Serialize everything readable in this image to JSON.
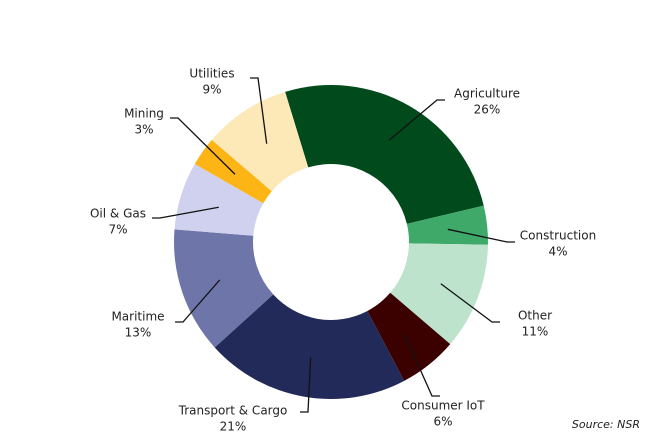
{
  "chart_data": {
    "type": "donut",
    "categories": [
      "Agriculture",
      "Construction",
      "Other",
      "Consumer IoT",
      "Transport & Cargo",
      "Maritime",
      "Oil & Gas",
      "Mining",
      "Utilities"
    ],
    "values": [
      26,
      4,
      11,
      6,
      21,
      13,
      7,
      3,
      9
    ],
    "value_labels": [
      "26%",
      "4%",
      "11%",
      "6%",
      "21%",
      "13%",
      "7%",
      "3%",
      "9%"
    ],
    "colors": [
      "#004a1c",
      "#3fa96a",
      "#bde3cc",
      "#3b0000",
      "#222a5a",
      "#6e76a9",
      "#cfd1ee",
      "#fdb515",
      "#fde8b8"
    ],
    "source": "Source: NSR"
  }
}
